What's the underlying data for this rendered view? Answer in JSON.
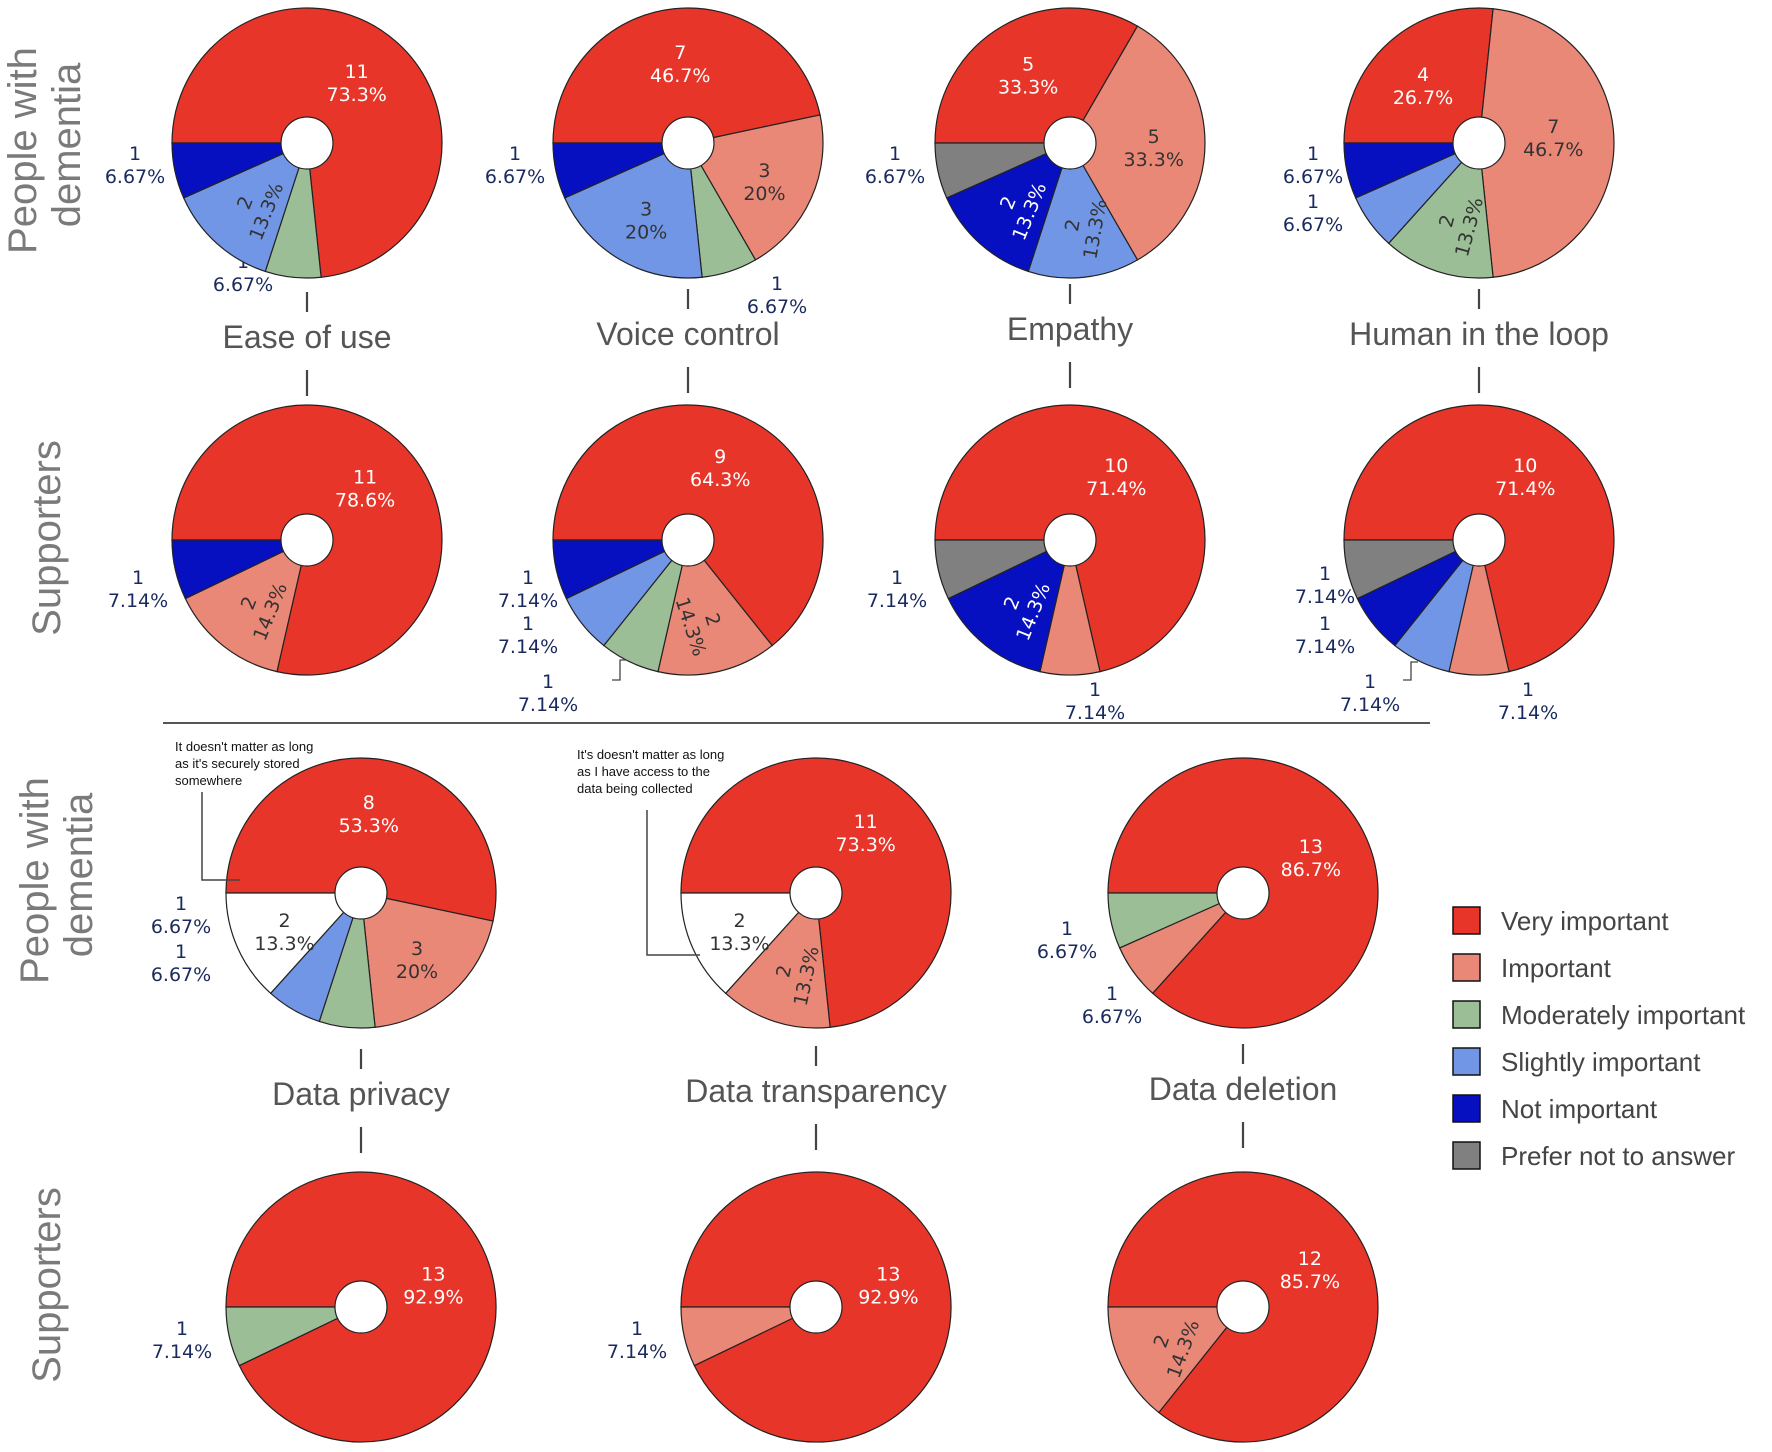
{
  "row_labels": {
    "pwd_top": [
      "People with",
      "dementia"
    ],
    "sup_top": "Supporters",
    "pwd_bottom": [
      "People with",
      "dementia"
    ],
    "sup_bottom": "Supporters"
  },
  "colors": {
    "very_important": "#E8352A",
    "important": "#EA8878",
    "moderately_important": "#9BBE97",
    "slightly_important": "#7296E6",
    "not_important": "#0710C0",
    "prefer_not": "#808080",
    "other": "#FFFFFF",
    "label_dark": "#1a2a5e"
  },
  "legend": {
    "items": [
      {
        "key": "very_important",
        "label": "Very important"
      },
      {
        "key": "important",
        "label": "Important"
      },
      {
        "key": "moderately_important",
        "label": "Moderately important"
      },
      {
        "key": "slightly_important",
        "label": "Slightly important"
      },
      {
        "key": "not_important",
        "label": "Not important"
      },
      {
        "key": "prefer_not",
        "label": "Prefer not to answer"
      }
    ]
  },
  "notes": {
    "privacy": [
      "It doesn't matter as long",
      "as it's securely stored",
      "somewhere"
    ],
    "transparency": [
      "It's doesn't matter as long",
      "as I have access to the",
      "data being collected"
    ]
  },
  "chart_data": [
    {
      "type": "pie",
      "title": "Ease of use",
      "group": "People with dementia",
      "slices": [
        {
          "category": "very_important",
          "count": 11,
          "pct": "73.3%"
        },
        {
          "category": "moderately_important",
          "count": 1,
          "pct": "6.67%"
        },
        {
          "category": "slightly_important",
          "count": 2,
          "pct": "13.3%"
        },
        {
          "category": "not_important",
          "count": 1,
          "pct": "6.67%"
        }
      ]
    },
    {
      "type": "pie",
      "title": "Voice control",
      "group": "People with dementia",
      "slices": [
        {
          "category": "very_important",
          "count": 7,
          "pct": "46.7%"
        },
        {
          "category": "important",
          "count": 3,
          "pct": "20%"
        },
        {
          "category": "moderately_important",
          "count": 1,
          "pct": "6.67%"
        },
        {
          "category": "slightly_important",
          "count": 3,
          "pct": "20%"
        },
        {
          "category": "not_important",
          "count": 1,
          "pct": "6.67%"
        }
      ]
    },
    {
      "type": "pie",
      "title": "Empathy",
      "group": "People with dementia",
      "slices": [
        {
          "category": "very_important",
          "count": 5,
          "pct": "33.3%"
        },
        {
          "category": "important",
          "count": 5,
          "pct": "33.3%"
        },
        {
          "category": "slightly_important",
          "count": 2,
          "pct": "13.3%"
        },
        {
          "category": "not_important",
          "count": 2,
          "pct": "13.3%"
        },
        {
          "category": "prefer_not",
          "count": 1,
          "pct": "6.67%"
        }
      ]
    },
    {
      "type": "pie",
      "title": "Human in the loop",
      "group": "People with dementia",
      "slices": [
        {
          "category": "very_important",
          "count": 4,
          "pct": "26.7%"
        },
        {
          "category": "important",
          "count": 7,
          "pct": "46.7%"
        },
        {
          "category": "moderately_important",
          "count": 2,
          "pct": "13.3%"
        },
        {
          "category": "slightly_important",
          "count": 1,
          "pct": "6.67%"
        },
        {
          "category": "not_important",
          "count": 1,
          "pct": "6.67%"
        }
      ]
    },
    {
      "type": "pie",
      "title": "Ease of use",
      "group": "Supporters",
      "slices": [
        {
          "category": "very_important",
          "count": 11,
          "pct": "78.6%"
        },
        {
          "category": "important",
          "count": 2,
          "pct": "14.3%"
        },
        {
          "category": "not_important",
          "count": 1,
          "pct": "7.14%"
        }
      ]
    },
    {
      "type": "pie",
      "title": "Voice control",
      "group": "Supporters",
      "slices": [
        {
          "category": "very_important",
          "count": 9,
          "pct": "64.3%"
        },
        {
          "category": "important",
          "count": 2,
          "pct": "14.3%"
        },
        {
          "category": "moderately_important",
          "count": 1,
          "pct": "7.14%"
        },
        {
          "category": "slightly_important",
          "count": 1,
          "pct": "7.14%"
        },
        {
          "category": "not_important",
          "count": 1,
          "pct": "7.14%"
        }
      ]
    },
    {
      "type": "pie",
      "title": "Empathy",
      "group": "Supporters",
      "slices": [
        {
          "category": "very_important",
          "count": 10,
          "pct": "71.4%"
        },
        {
          "category": "important",
          "count": 1,
          "pct": "7.14%"
        },
        {
          "category": "not_important",
          "count": 2,
          "pct": "14.3%"
        },
        {
          "category": "prefer_not",
          "count": 1,
          "pct": "7.14%"
        }
      ]
    },
    {
      "type": "pie",
      "title": "Human in the loop",
      "group": "Supporters",
      "slices": [
        {
          "category": "very_important",
          "count": 10,
          "pct": "71.4%"
        },
        {
          "category": "important",
          "count": 1,
          "pct": "7.14%"
        },
        {
          "category": "slightly_important",
          "count": 1,
          "pct": "7.14%"
        },
        {
          "category": "not_important",
          "count": 1,
          "pct": "7.14%"
        },
        {
          "category": "prefer_not",
          "count": 1,
          "pct": "7.14%"
        }
      ]
    },
    {
      "type": "pie",
      "title": "Data privacy",
      "group": "People with dementia",
      "slices": [
        {
          "category": "very_important",
          "count": 8,
          "pct": "53.3%"
        },
        {
          "category": "important",
          "count": 3,
          "pct": "20%"
        },
        {
          "category": "moderately_important",
          "count": 1,
          "pct": "6.67%"
        },
        {
          "category": "slightly_important",
          "count": 1,
          "pct": "6.67%"
        },
        {
          "category": "other",
          "count": 2,
          "pct": "13.3%"
        }
      ]
    },
    {
      "type": "pie",
      "title": "Data transparency",
      "group": "People with dementia",
      "slices": [
        {
          "category": "very_important",
          "count": 11,
          "pct": "73.3%"
        },
        {
          "category": "important",
          "count": 2,
          "pct": "13.3%"
        },
        {
          "category": "other",
          "count": 2,
          "pct": "13.3%"
        }
      ]
    },
    {
      "type": "pie",
      "title": "Data deletion",
      "group": "People with dementia",
      "slices": [
        {
          "category": "very_important",
          "count": 13,
          "pct": "86.7%"
        },
        {
          "category": "important",
          "count": 1,
          "pct": "6.67%"
        },
        {
          "category": "moderately_important",
          "count": 1,
          "pct": "6.67%"
        }
      ]
    },
    {
      "type": "pie",
      "title": "Data privacy",
      "group": "Supporters",
      "slices": [
        {
          "category": "very_important",
          "count": 13,
          "pct": "92.9%"
        },
        {
          "category": "moderately_important",
          "count": 1,
          "pct": "7.14%"
        }
      ]
    },
    {
      "type": "pie",
      "title": "Data transparency",
      "group": "Supporters",
      "slices": [
        {
          "category": "very_important",
          "count": 13,
          "pct": "92.9%"
        },
        {
          "category": "important",
          "count": 1,
          "pct": "7.14%"
        }
      ]
    },
    {
      "type": "pie",
      "title": "Data deletion",
      "group": "Supporters",
      "slices": [
        {
          "category": "very_important",
          "count": 12,
          "pct": "85.7%"
        },
        {
          "category": "important",
          "count": 2,
          "pct": "14.3%"
        }
      ]
    }
  ]
}
